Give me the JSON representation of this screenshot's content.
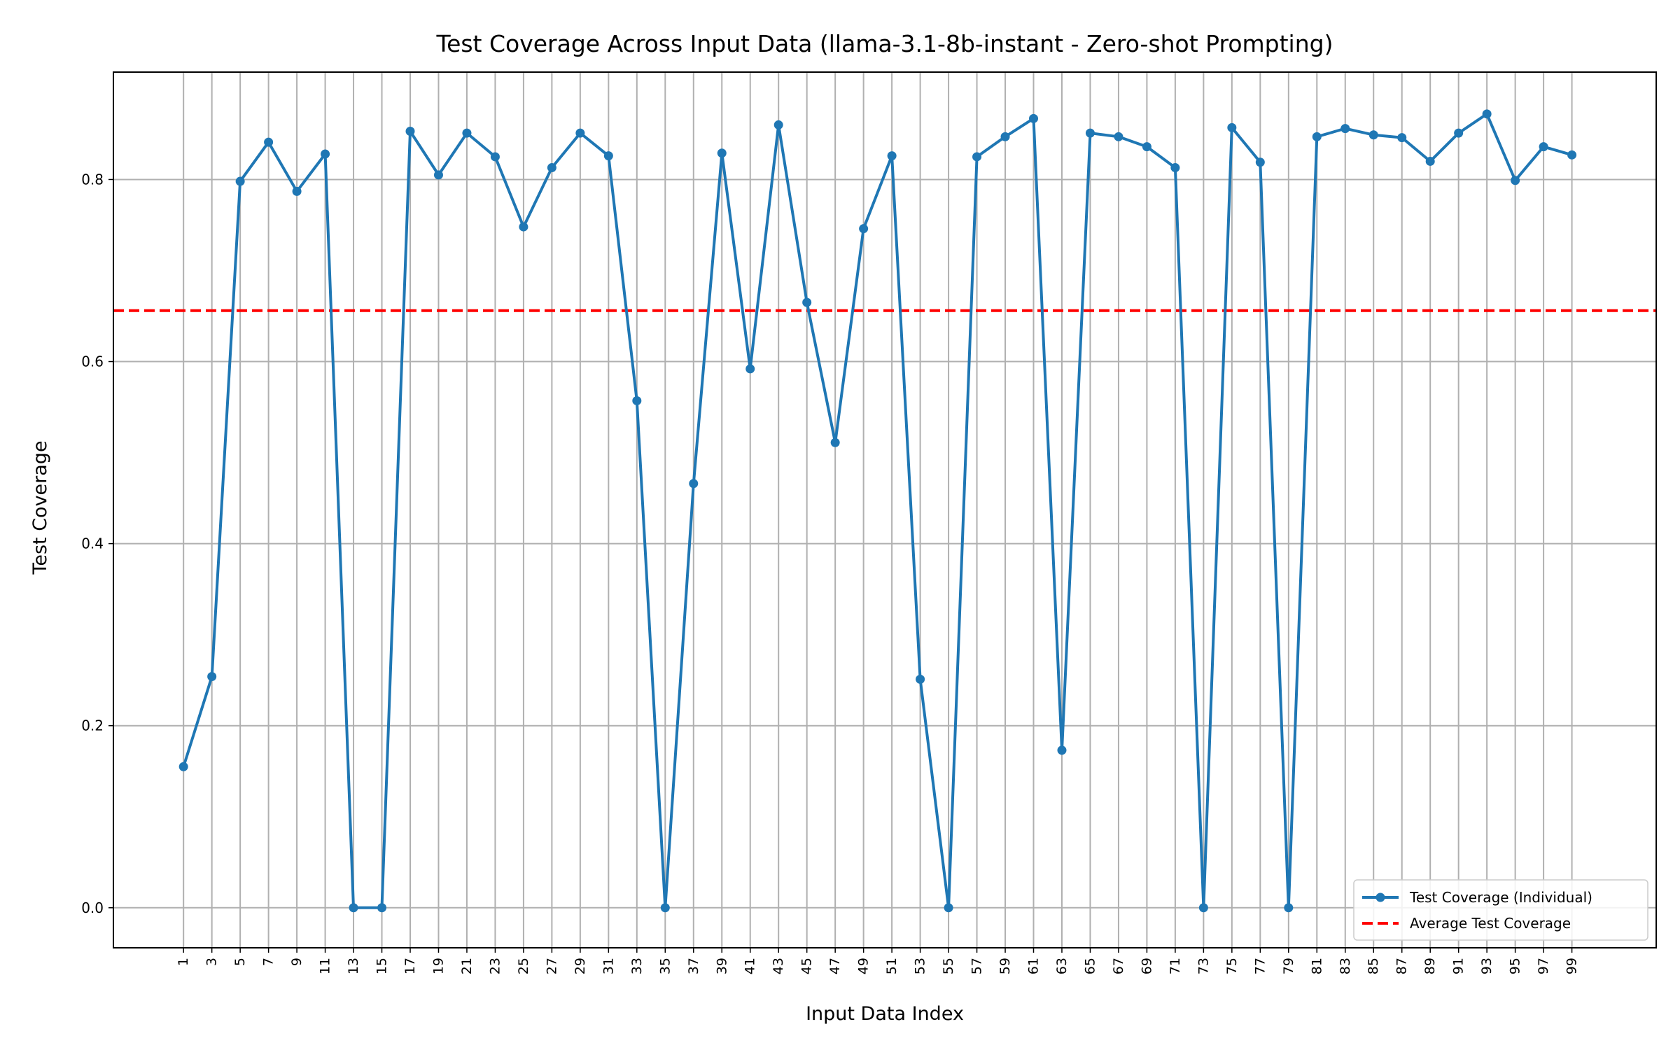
{
  "chart_data": {
    "type": "line",
    "title": "Test Coverage Across Input Data (llama-3.1-8b-instant - Zero-shot Prompting)",
    "xlabel": "Input Data Index",
    "ylabel": "Test Coverage",
    "x": [
      1,
      3,
      5,
      7,
      9,
      11,
      13,
      15,
      17,
      19,
      21,
      23,
      25,
      27,
      29,
      31,
      33,
      35,
      37,
      39,
      41,
      43,
      45,
      47,
      49,
      51,
      53,
      55,
      57,
      59,
      61,
      63,
      65,
      67,
      69,
      71,
      73,
      75,
      77,
      79,
      81,
      83,
      85,
      87,
      89,
      91,
      93,
      95,
      97,
      99
    ],
    "xticks": [
      1,
      3,
      5,
      7,
      9,
      11,
      13,
      15,
      17,
      19,
      21,
      23,
      25,
      27,
      29,
      31,
      33,
      35,
      37,
      39,
      41,
      43,
      45,
      47,
      49,
      51,
      53,
      55,
      57,
      59,
      61,
      63,
      65,
      67,
      69,
      71,
      73,
      75,
      77,
      79,
      81,
      83,
      85,
      87,
      89,
      91,
      93,
      95,
      97,
      99
    ],
    "yticks": [
      0.0,
      0.2,
      0.4,
      0.6,
      0.8
    ],
    "ytick_labels": [
      "0.0",
      "0.2",
      "0.4",
      "0.6",
      "0.8"
    ],
    "xlim": [
      -3.95,
      104.95
    ],
    "ylim": [
      -0.044,
      0.918
    ],
    "grid": true,
    "legend_position": "lower right",
    "series": [
      {
        "name": "Test Coverage (Individual)",
        "color": "#1f77b4",
        "marker": "circle",
        "values": [
          0.155,
          0.254,
          0.798,
          0.841,
          0.787,
          0.828,
          0.0,
          0.0,
          0.853,
          0.805,
          0.851,
          0.825,
          0.748,
          0.813,
          0.851,
          0.826,
          0.557,
          0.0,
          0.466,
          0.829,
          0.592,
          0.86,
          0.665,
          0.511,
          0.746,
          0.826,
          0.251,
          0.0,
          0.825,
          0.847,
          0.867,
          0.173,
          0.851,
          0.847,
          0.836,
          0.813,
          0.0,
          0.857,
          0.819,
          0.0,
          0.847,
          0.856,
          0.849,
          0.846,
          0.82,
          0.851,
          0.872,
          0.799,
          0.836,
          0.827
        ]
      }
    ],
    "reference_lines": [
      {
        "name": "Average Test Coverage",
        "color": "#ff0000",
        "style": "dashed",
        "y": 0.656
      }
    ]
  }
}
